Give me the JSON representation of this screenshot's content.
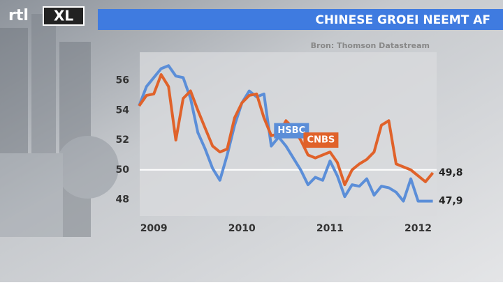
{
  "logo": {
    "brand": "rtl",
    "product": "XL"
  },
  "chart_data": {
    "type": "line",
    "title": "CHINESE GROEI NEEMT AF",
    "source": "Bron: Thomson Datastream",
    "x": [
      2008.833,
      2008.917,
      2009.0,
      2009.083,
      2009.167,
      2009.25,
      2009.333,
      2009.417,
      2009.5,
      2009.583,
      2009.667,
      2009.75,
      2009.833,
      2009.917,
      2010.0,
      2010.083,
      2010.167,
      2010.25,
      2010.333,
      2010.417,
      2010.5,
      2010.583,
      2010.667,
      2010.75,
      2010.833,
      2010.917,
      2011.0,
      2011.083,
      2011.167,
      2011.25,
      2011.333,
      2011.417,
      2011.5,
      2011.583,
      2011.667,
      2011.75,
      2011.833,
      2011.917,
      2012.0,
      2012.083,
      2012.167
    ],
    "series": [
      {
        "name": "HSBC",
        "color": "#5b8ed8",
        "values": [
          54.3,
          55.6,
          56.2,
          56.8,
          57.0,
          56.3,
          56.2,
          54.8,
          52.5,
          51.4,
          50.1,
          49.3,
          51.0,
          53.0,
          54.5,
          55.3,
          54.9,
          55.1,
          51.6,
          52.2,
          51.6,
          50.8,
          50.0,
          49.0,
          49.5,
          49.3,
          50.6,
          49.6,
          48.2,
          49.0,
          48.9,
          49.4,
          48.3,
          48.9,
          48.8,
          48.5,
          47.9,
          49.4,
          47.9,
          47.9,
          47.9
        ],
        "end_label": "47,9"
      },
      {
        "name": "CNBS",
        "color": "#e0622a",
        "values": [
          54.3,
          55.0,
          55.1,
          56.4,
          55.6,
          52.0,
          54.8,
          55.3,
          54.0,
          52.8,
          51.6,
          51.2,
          51.4,
          53.5,
          54.5,
          55.0,
          55.1,
          53.5,
          52.3,
          52.4,
          53.3,
          52.8,
          52.0,
          51.0,
          50.8,
          51.0,
          51.2,
          50.5,
          49.0,
          50.0,
          50.4,
          50.7,
          51.2,
          53.0,
          53.3,
          50.4,
          50.2,
          50.0,
          49.6,
          49.2,
          49.8
        ],
        "end_label": "49,8"
      }
    ],
    "xlim": [
      2008.84,
      2012.21
    ],
    "xticks": [
      2009,
      2010,
      2011,
      2012
    ],
    "ylim": [
      46.9,
      57.9
    ],
    "yticks": [
      48,
      50,
      52,
      54,
      56
    ],
    "reference_line": 50
  }
}
